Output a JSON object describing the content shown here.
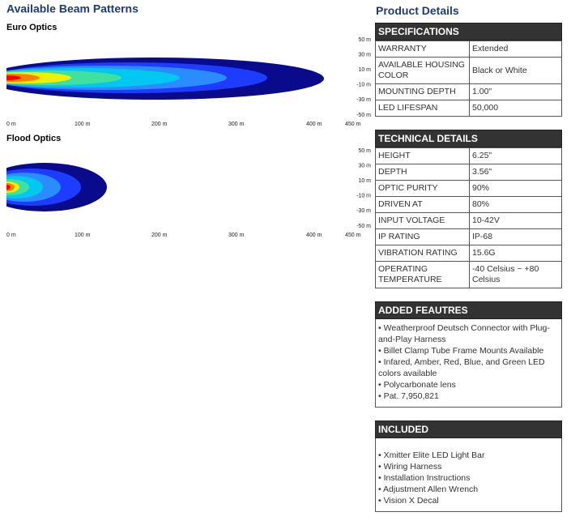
{
  "left": {
    "title": "Available Beam Patterns",
    "beams": [
      {
        "label": "Euro Optics",
        "y_labels": [
          "50 m",
          "30 m",
          "10 m",
          "-10 m",
          "-30 m",
          "-50 m"
        ],
        "x_labels": [
          "0 m",
          "100 m",
          "200 m",
          "300 m",
          "400 m",
          "450 m"
        ]
      },
      {
        "label": "Flood Optics",
        "y_labels": [
          "50 m",
          "30 m",
          "10 m",
          "-10 m",
          "-30 m",
          "-50 m"
        ],
        "x_labels": [
          "0 m",
          "100 m",
          "200 m",
          "300 m",
          "400 m",
          "450 m"
        ]
      }
    ]
  },
  "right": {
    "title": "Product Details",
    "sections": [
      {
        "heading": "SPECIFICATIONS",
        "rows": [
          [
            "WARRANTY",
            "Extended"
          ],
          [
            "AVAILABLE HOUSING COLOR",
            "Black or White"
          ],
          [
            "MOUNTING DEPTH",
            "1.00\""
          ],
          [
            "LED LIFESPAN",
            "50,000"
          ]
        ]
      },
      {
        "heading": "TECHNICAL DETAILS",
        "rows": [
          [
            "HEIGHT",
            "6.25\""
          ],
          [
            "DEPTH",
            "3.56\""
          ],
          [
            "OPTIC PURITY",
            "90%"
          ],
          [
            "DRIVEN AT",
            "80%"
          ],
          [
            "INPUT VOLTAGE",
            "10-42V"
          ],
          [
            "IP RATING",
            "IP-68"
          ],
          [
            "VIBRATION RATING",
            "15.6G"
          ],
          [
            "OPERATING TEMPERATURE",
            "-40 Celsius ~ +80 Celsius"
          ]
        ]
      },
      {
        "heading": "ADDED FEAUTRES",
        "items": [
          "• Weatherproof Deutsch Connector with Plug-and-Play Harness",
          "• Billet Clamp Tube Frame Mounts Available",
          "• Infared, Amber, Red, Blue, and Green LED colors available",
          "• Polycarbonate lens",
          "• Pat. 7,950,821"
        ]
      },
      {
        "heading": "INCLUDED",
        "items": [
          "• Xmitter Elite LED Light Bar",
          "• Wiring Harness",
          "• Installation Instructions",
          "• Adjustment Allen Wrench",
          "• Vision X Decal"
        ]
      }
    ]
  }
}
